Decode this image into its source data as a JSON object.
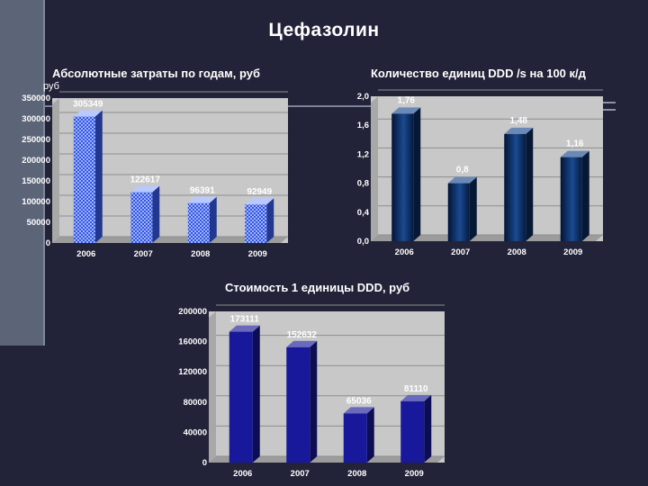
{
  "page": {
    "title": "Цефазолин"
  },
  "chart_data": [
    {
      "type": "bar",
      "title": "Абсолютные затраты по годам, руб",
      "ylabel": "руб",
      "xlabel": "",
      "categories": [
        "2006",
        "2007",
        "2008",
        "2009"
      ],
      "series": [
        {
          "values": [
            305349,
            122617,
            96391,
            92949
          ]
        }
      ],
      "data_labels": [
        "305349",
        "122617",
        "96391",
        "92949"
      ],
      "ylim": [
        0,
        350000
      ],
      "yticks": [
        0,
        50000,
        100000,
        150000,
        200000,
        250000,
        300000,
        350000
      ],
      "ytick_labels": [
        "0",
        "50000",
        "100000",
        "150000",
        "200000",
        "250000",
        "300000",
        "350000"
      ],
      "grid": true,
      "colors": {
        "bar": "#3355dd",
        "bar_pattern": "#9fb4ff",
        "plot_bg": "#c8c8c8"
      }
    },
    {
      "type": "bar",
      "title": "Количество единиц DDD /s на 100 к/д",
      "xlabel": "",
      "ylabel": "",
      "categories": [
        "2006",
        "2007",
        "2008",
        "2009"
      ],
      "series": [
        {
          "values": [
            1.76,
            0.8,
            1.48,
            1.16
          ]
        }
      ],
      "data_labels": [
        "1,76",
        "0,8",
        "1,48",
        "1,16"
      ],
      "ylim": [
        0,
        2
      ],
      "yticks": [
        0,
        0.4,
        0.8,
        1.2,
        1.6,
        2
      ],
      "ytick_labels": [
        "0,0",
        "0,4",
        "0,8",
        "1,2",
        "1,6",
        "2,0"
      ],
      "grid": true,
      "colors": {
        "bar": "#0b2b5e",
        "bar_light": "#1a4a90",
        "plot_bg": "#c8c8c8"
      }
    },
    {
      "type": "bar",
      "title": "Стоимость 1 единицы DDD, руб",
      "xlabel": "",
      "ylabel": "",
      "categories": [
        "2006",
        "2007",
        "2008",
        "2009"
      ],
      "series": [
        {
          "values": [
            173111,
            152632,
            65036,
            81110
          ]
        }
      ],
      "data_labels": [
        "173111",
        "152632",
        "65036",
        "81110"
      ],
      "ylim": [
        0,
        200000
      ],
      "yticks": [
        0,
        40000,
        80000,
        120000,
        160000,
        200000
      ],
      "ytick_labels": [
        "0",
        "40000",
        "80000",
        "120000",
        "160000",
        "200000"
      ],
      "grid": true,
      "colors": {
        "bar": "#18189a",
        "plot_bg": "#c8c8c8"
      }
    }
  ]
}
